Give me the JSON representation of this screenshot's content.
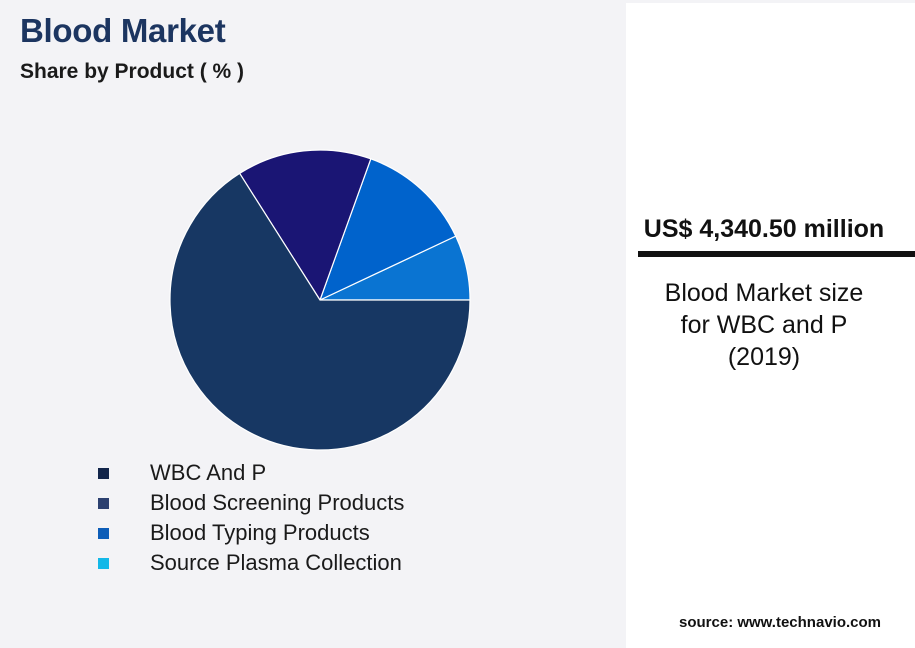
{
  "header": {
    "title": "Blood Market",
    "subtitle": "Share by Product ( % )"
  },
  "chart_data": {
    "type": "pie",
    "title": "Blood Market",
    "subtitle": "Share by Product ( % )",
    "legend_position": "bottom",
    "start_angle_deg": 0,
    "direction": "counterclockwise",
    "slices": [
      {
        "label": "Source Plasma Collection",
        "value": 7,
        "color": "#0a74d2",
        "legend_color": "#13b8e8"
      },
      {
        "label": "Blood Typing Products",
        "value": 12.5,
        "color": "#0063cc",
        "legend_color": "#0d5db8"
      },
      {
        "label": "Blood Screening Products",
        "value": 14.5,
        "color": "#1a1574",
        "legend_color": "#2c4070"
      },
      {
        "label": "WBC And P",
        "value": 66,
        "color": "#173763",
        "legend_color": "#12254a"
      }
    ]
  },
  "legend": {
    "items": [
      {
        "label": "WBC And P",
        "color": "#12254a"
      },
      {
        "label": "Blood Screening Products",
        "color": "#2c4070"
      },
      {
        "label": "Blood Typing Products",
        "color": "#0d5db8"
      },
      {
        "label": "Source Plasma Collection",
        "color": "#13b8e8"
      }
    ]
  },
  "panel": {
    "value": "US$ 4,340.50 million",
    "caption_lines": [
      "Blood Market size",
      "for WBC and P",
      "(2019)"
    ]
  },
  "source": "source: www.technavio.com"
}
